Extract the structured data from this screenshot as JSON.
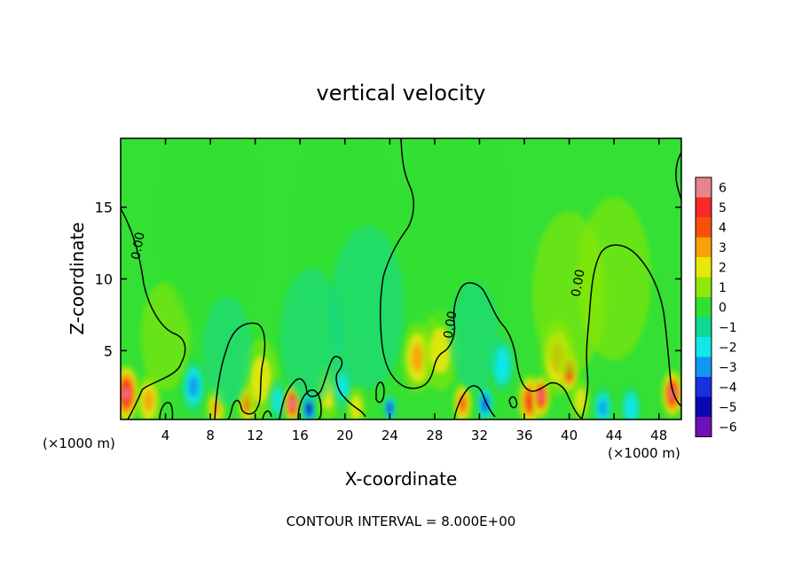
{
  "chart_data": {
    "type": "heatmap",
    "title": "vertical velocity",
    "xlabel": "X-coordinate",
    "ylabel": "Z-coordinate",
    "x_unit_left": "(×1000 m)",
    "x_unit_right": "(×1000 m)",
    "footer": "CONTOUR INTERVAL = 8.000E+00",
    "xlim": [
      0,
      50
    ],
    "ylim": [
      0.2,
      19.8
    ],
    "x_ticks": [
      4,
      8,
      12,
      16,
      20,
      24,
      28,
      32,
      36,
      40,
      44,
      48
    ],
    "y_ticks": [
      5,
      10,
      15
    ],
    "colorbar": {
      "levels": [
        6,
        5,
        4,
        3,
        2,
        1,
        0,
        -1,
        -2,
        -3,
        -4,
        -5,
        -6
      ],
      "colors": [
        "#e8848c",
        "#f82828",
        "#f85008",
        "#f8a008",
        "#e8e808",
        "#90e808",
        "#30e030",
        "#10d890",
        "#10e8e8",
        "#1098f0",
        "#1830e0",
        "#0808b0",
        "#7010b8"
      ]
    },
    "contour_labels": [
      "0.00",
      "0.00",
      "0.00"
    ],
    "background_color": "#33e033",
    "blobs": [
      {
        "x": 0.5,
        "z": 2.0,
        "w": 5.5,
        "s": 1.1
      },
      {
        "x": 2.5,
        "z": 1.5,
        "w": 2.5,
        "s": 1.0
      },
      {
        "x": 6.5,
        "z": 2.5,
        "w": -3.0,
        "s": 1.0
      },
      {
        "x": 8.5,
        "z": 1.0,
        "w": 2.5,
        "s": 0.8
      },
      {
        "x": 11.3,
        "z": 1.3,
        "w": 4.0,
        "s": 0.8
      },
      {
        "x": 12.5,
        "z": 3.0,
        "w": 1.5,
        "s": 1.5
      },
      {
        "x": 14.0,
        "z": 1.5,
        "w": -2.0,
        "s": 0.8
      },
      {
        "x": 15.3,
        "z": 1.3,
        "w": 6.5,
        "s": 0.7
      },
      {
        "x": 16.8,
        "z": 1.0,
        "w": -5.5,
        "s": 0.6
      },
      {
        "x": 18.5,
        "z": 2.0,
        "w": 1.5,
        "s": 1.0
      },
      {
        "x": 19.8,
        "z": 2.5,
        "w": -2.0,
        "s": 0.9
      },
      {
        "x": 21.0,
        "z": 1.0,
        "w": 1.5,
        "s": 0.8
      },
      {
        "x": 24.0,
        "z": 1.0,
        "w": -4.5,
        "s": 0.5
      },
      {
        "x": 26.5,
        "z": 4.5,
        "w": 3.0,
        "s": 1.3
      },
      {
        "x": 28.5,
        "z": 5.0,
        "w": 1.5,
        "s": 1.5
      },
      {
        "x": 30.5,
        "z": 1.3,
        "w": 4.0,
        "s": 0.8
      },
      {
        "x": 32.5,
        "z": 1.3,
        "w": -4.0,
        "s": 0.7
      },
      {
        "x": 34.0,
        "z": 4.0,
        "w": -2.5,
        "s": 1.0
      },
      {
        "x": 36.5,
        "z": 1.5,
        "w": 4.5,
        "s": 1.0
      },
      {
        "x": 37.5,
        "z": 1.8,
        "w": 6.0,
        "s": 0.8
      },
      {
        "x": 39.0,
        "z": 4.5,
        "w": 2.5,
        "s": 1.4
      },
      {
        "x": 40.0,
        "z": 3.5,
        "w": 5.0,
        "s": 0.8
      },
      {
        "x": 41.0,
        "z": 1.5,
        "w": 2.0,
        "s": 0.8
      },
      {
        "x": 43.0,
        "z": 1.0,
        "w": -3.0,
        "s": 0.8
      },
      {
        "x": 45.5,
        "z": 1.0,
        "w": -2.5,
        "s": 0.8
      },
      {
        "x": 49.2,
        "z": 2.0,
        "w": 6.0,
        "s": 0.9
      },
      {
        "x": 40.0,
        "z": 9.0,
        "w": 1.0,
        "s": 3.0
      },
      {
        "x": 44.0,
        "z": 10.0,
        "w": 0.8,
        "s": 3.0
      },
      {
        "x": 4.0,
        "z": 6.0,
        "w": 0.9,
        "s": 2.0
      },
      {
        "x": 8.0,
        "z": 14.0,
        "w": -0.4,
        "s": 4.0
      },
      {
        "x": 20.0,
        "z": 13.0,
        "w": -0.4,
        "s": 4.0
      },
      {
        "x": 30.0,
        "z": 14.0,
        "w": -0.3,
        "s": 4.0
      },
      {
        "x": 17.0,
        "z": 6.0,
        "w": -0.8,
        "s": 2.5
      },
      {
        "x": 9.5,
        "z": 5.0,
        "w": -0.9,
        "s": 2.0
      },
      {
        "x": 31.5,
        "z": 6.0,
        "w": -1.0,
        "s": 2.0
      },
      {
        "x": 22.0,
        "z": 8.0,
        "w": -0.7,
        "s": 3.0
      }
    ]
  }
}
